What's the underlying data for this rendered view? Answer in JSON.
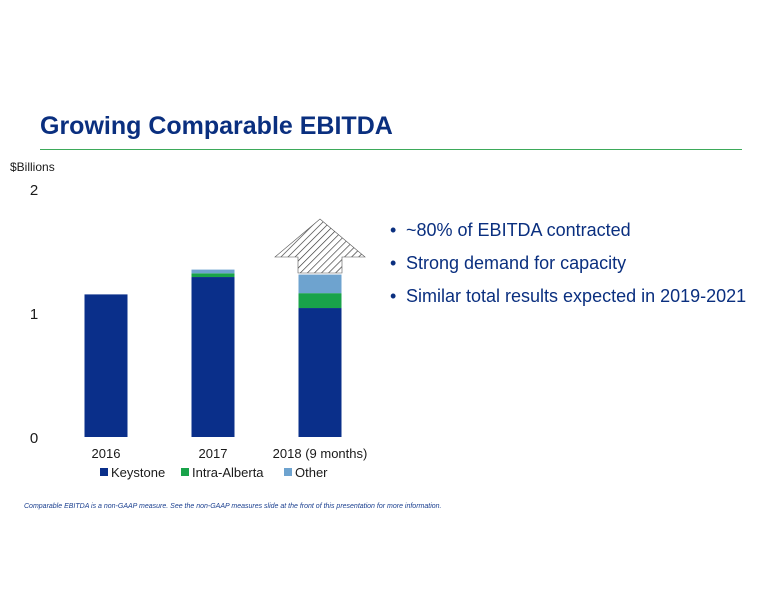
{
  "slide": {
    "title": "Growing Comparable EBITDA",
    "bullets": [
      "~80% of EBITDA contracted",
      "Strong demand for capacity",
      "Similar total results expected in 2019-2021"
    ],
    "footnote": "Comparable EBITDA is a non-GAAP measure.  See the non-GAAP measures slide at the front of this presentation for more information."
  },
  "chart_data": {
    "type": "bar",
    "stacked": true,
    "ylabel": "$Billions",
    "ylim": [
      0,
      2
    ],
    "yticks": [
      "0",
      "1",
      "2"
    ],
    "categories": [
      "2016",
      "2017",
      "2018 (9 months)"
    ],
    "series": [
      {
        "name": "Keystone",
        "color": "#0a2f8a",
        "values": [
          1.15,
          1.29,
          1.04
        ]
      },
      {
        "name": "Intra-Alberta",
        "color": "#19a34a",
        "values": [
          0,
          0.03,
          0.12
        ]
      },
      {
        "name": "Other",
        "color": "#6ea3cf",
        "values": [
          0,
          0.03,
          0.15
        ]
      }
    ],
    "legend": "bottom",
    "annotation": "hatched up-arrow above 2018 bar"
  }
}
